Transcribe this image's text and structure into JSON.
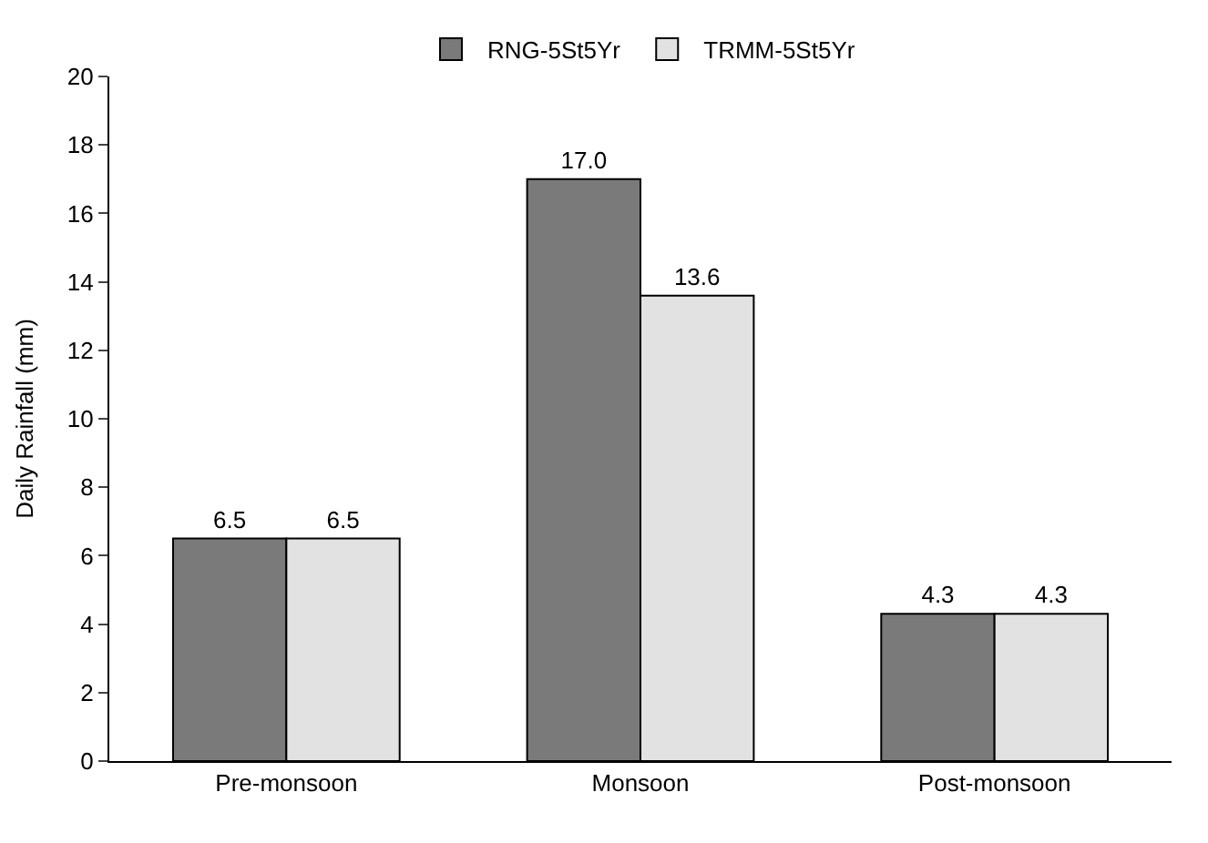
{
  "chart_data": {
    "type": "bar",
    "ylabel": "Daily Rainfall (mm)",
    "categories": [
      "Pre-monsoon",
      "Monsoon",
      "Post-monsoon"
    ],
    "series": [
      {
        "name": "RNG-5St5Yr",
        "color": "#7a7a7a",
        "values": [
          6.5,
          17.0,
          4.3
        ],
        "value_labels": [
          "6.5",
          "17.0",
          "4.3"
        ]
      },
      {
        "name": "TRMM-5St5Yr",
        "color": "#e2e2e2",
        "values": [
          6.5,
          13.6,
          4.3
        ],
        "value_labels": [
          "6.5",
          "13.6",
          "4.3"
        ]
      }
    ],
    "ylim": [
      0,
      20
    ],
    "yticks": [
      0,
      2,
      4,
      6,
      8,
      10,
      12,
      14,
      16,
      18,
      20
    ],
    "legend": "top"
  }
}
